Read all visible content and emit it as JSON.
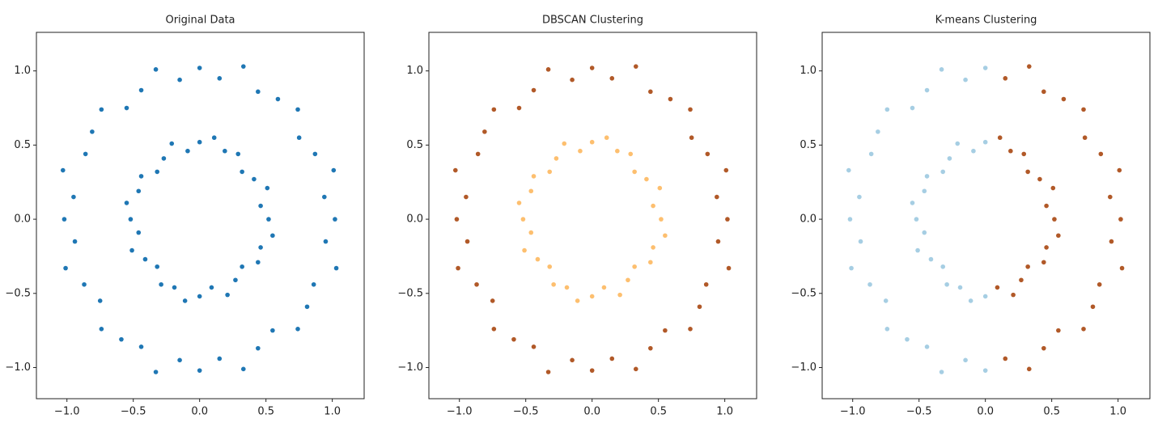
{
  "chart_data": [
    {
      "type": "scatter",
      "title": "Original Data",
      "xlim": [
        -1.23,
        1.24
      ],
      "ylim": [
        -1.21,
        1.26
      ],
      "xticks": [
        {
          "value": -1.0,
          "label": "−1.0"
        },
        {
          "value": -0.5,
          "label": "−0.5"
        },
        {
          "value": 0,
          "label": "0.0"
        },
        0.5,
        {
          "value": 1.0,
          "label": "1.0"
        }
      ],
      "yticks": [
        {
          "value": -1.0,
          "label": "−1.0"
        },
        {
          "value": -0.5,
          "label": "−0.5"
        },
        {
          "value": 0,
          "label": "0.0"
        },
        0.5,
        {
          "value": 1.0,
          "label": "1.0"
        }
      ],
      "series": [
        {
          "color": "#1f77b4",
          "x": [
            1.02,
            0.94,
            1.01,
            0.87,
            0.75,
            0.74,
            0.59,
            0.44,
            0.33,
            0.15,
            0,
            -0.15,
            -0.33,
            -0.44,
            -0.55,
            -0.74,
            -0.81,
            -0.86,
            -1.03,
            -0.95,
            -1.02,
            -0.94,
            -1.01,
            -0.87,
            -0.75,
            -0.74,
            -0.59,
            -0.44,
            -0.33,
            -0.15,
            0,
            0.15,
            0.33,
            0.44,
            0.55,
            0.74,
            0.81,
            0.86,
            1.03,
            0.95,
            0.52,
            0.46,
            0.51,
            0.41,
            0.32,
            0.29,
            0.19,
            0.11,
            0,
            -0.09,
            -0.21,
            -0.27,
            -0.32,
            -0.44,
            -0.46,
            -0.55,
            -0.52,
            -0.46,
            -0.51,
            -0.41,
            -0.32,
            -0.29,
            -0.19,
            -0.11,
            0,
            0.09,
            0.21,
            0.27,
            0.32,
            0.44,
            0.46,
            0.55
          ],
          "y": [
            0,
            0.15,
            0.33,
            0.44,
            0.55,
            0.74,
            0.81,
            0.86,
            1.03,
            0.95,
            1.02,
            0.94,
            1.01,
            0.87,
            0.75,
            0.74,
            0.59,
            0.44,
            0.33,
            0.15,
            0,
            -0.15,
            -0.33,
            -0.44,
            -0.55,
            -0.74,
            -0.81,
            -0.86,
            -1.03,
            -0.95,
            -1.02,
            -0.94,
            -1.01,
            -0.87,
            -0.75,
            -0.74,
            -0.59,
            -0.44,
            -0.33,
            -0.15,
            0,
            0.09,
            0.21,
            0.27,
            0.32,
            0.44,
            0.46,
            0.55,
            0.52,
            0.46,
            0.51,
            0.41,
            0.32,
            0.29,
            0.19,
            0.11,
            0,
            -0.09,
            -0.21,
            -0.27,
            -0.32,
            -0.44,
            -0.46,
            -0.55,
            -0.52,
            -0.46,
            -0.51,
            -0.41,
            -0.32,
            -0.29,
            -0.19,
            -0.11
          ]
        }
      ]
    },
    {
      "type": "scatter",
      "title": "DBSCAN Clustering",
      "xlim": [
        -1.23,
        1.24
      ],
      "ylim": [
        -1.21,
        1.26
      ],
      "xticks": [
        {
          "value": -1.0,
          "label": "−1.0"
        },
        {
          "value": -0.5,
          "label": "−0.5"
        },
        {
          "value": 0,
          "label": "0.0"
        },
        0.5,
        {
          "value": 1.0,
          "label": "1.0"
        }
      ],
      "yticks": [
        {
          "value": -1.0,
          "label": "−1.0"
        },
        {
          "value": -0.5,
          "label": "−0.5"
        },
        {
          "value": 0,
          "label": "0.0"
        },
        0.5,
        {
          "value": 1.0,
          "label": "1.0"
        }
      ],
      "series": [
        {
          "color": "#b15928",
          "x": [
            1.02,
            0.94,
            1.01,
            0.87,
            0.75,
            0.74,
            0.59,
            0.44,
            0.33,
            0.15,
            0,
            -0.15,
            -0.33,
            -0.44,
            -0.55,
            -0.74,
            -0.81,
            -0.86,
            -1.03,
            -0.95,
            -1.02,
            -0.94,
            -1.01,
            -0.87,
            -0.75,
            -0.74,
            -0.59,
            -0.44,
            -0.33,
            -0.15,
            0,
            0.15,
            0.33,
            0.44,
            0.55,
            0.74,
            0.81,
            0.86,
            1.03,
            0.95
          ],
          "y": [
            0,
            0.15,
            0.33,
            0.44,
            0.55,
            0.74,
            0.81,
            0.86,
            1.03,
            0.95,
            1.02,
            0.94,
            1.01,
            0.87,
            0.75,
            0.74,
            0.59,
            0.44,
            0.33,
            0.15,
            0,
            -0.15,
            -0.33,
            -0.44,
            -0.55,
            -0.74,
            -0.81,
            -0.86,
            -1.03,
            -0.95,
            -1.02,
            -0.94,
            -1.01,
            -0.87,
            -0.75,
            -0.74,
            -0.59,
            -0.44,
            -0.33,
            -0.15
          ]
        },
        {
          "color": "#fdbf6f",
          "x": [
            0.52,
            0.46,
            0.51,
            0.41,
            0.32,
            0.29,
            0.19,
            0.11,
            0,
            -0.09,
            -0.21,
            -0.27,
            -0.32,
            -0.44,
            -0.46,
            -0.55,
            -0.52,
            -0.46,
            -0.51,
            -0.41,
            -0.32,
            -0.29,
            -0.19,
            -0.11,
            0,
            0.09,
            0.21,
            0.27,
            0.32,
            0.44,
            0.46,
            0.55
          ],
          "y": [
            0,
            0.09,
            0.21,
            0.27,
            0.32,
            0.44,
            0.46,
            0.55,
            0.52,
            0.46,
            0.51,
            0.41,
            0.32,
            0.29,
            0.19,
            0.11,
            0,
            -0.09,
            -0.21,
            -0.27,
            -0.32,
            -0.44,
            -0.46,
            -0.55,
            -0.52,
            -0.46,
            -0.51,
            -0.41,
            -0.32,
            -0.29,
            -0.19,
            -0.11
          ]
        }
      ]
    },
    {
      "type": "scatter",
      "title": "K-means Clustering",
      "xlim": [
        -1.23,
        1.24
      ],
      "ylim": [
        -1.21,
        1.26
      ],
      "xticks": [
        {
          "value": -1.0,
          "label": "−1.0"
        },
        {
          "value": -0.5,
          "label": "−0.5"
        },
        {
          "value": 0,
          "label": "0.0"
        },
        0.5,
        {
          "value": 1.0,
          "label": "1.0"
        }
      ],
      "yticks": [
        {
          "value": -1.0,
          "label": "−1.0"
        },
        {
          "value": -0.5,
          "label": "−0.5"
        },
        {
          "value": 0,
          "label": "0.0"
        },
        0.5,
        {
          "value": 1.0,
          "label": "1.0"
        }
      ],
      "series": [
        {
          "color": "#a6cee3",
          "x": [
            0,
            -0.15,
            -0.33,
            -0.44,
            -0.55,
            -0.74,
            -0.81,
            -0.86,
            -1.03,
            -0.95,
            -1.02,
            -0.94,
            -1.01,
            -0.87,
            -0.75,
            -0.74,
            -0.59,
            -0.44,
            -0.33,
            -0.15,
            0,
            0,
            -0.09,
            -0.21,
            -0.27,
            -0.32,
            -0.44,
            -0.46,
            -0.55,
            -0.52,
            -0.46,
            -0.51,
            -0.41,
            -0.32,
            -0.29,
            -0.19,
            -0.11,
            0
          ],
          "y": [
            1.02,
            0.94,
            1.01,
            0.87,
            0.75,
            0.74,
            0.59,
            0.44,
            0.33,
            0.15,
            0,
            -0.15,
            -0.33,
            -0.44,
            -0.55,
            -0.74,
            -0.81,
            -0.86,
            -1.03,
            -0.95,
            -1.02,
            0.52,
            0.46,
            0.51,
            0.41,
            0.32,
            0.29,
            0.19,
            0.11,
            0,
            -0.09,
            -0.21,
            -0.27,
            -0.32,
            -0.44,
            -0.46,
            -0.55,
            -0.52
          ]
        },
        {
          "color": "#b15928",
          "x": [
            0.15,
            0.33,
            0.44,
            0.55,
            0.74,
            0.81,
            0.86,
            1.03,
            0.95,
            1.02,
            0.94,
            1.01,
            0.87,
            0.75,
            0.74,
            0.59,
            0.44,
            0.33,
            0.15,
            0.09,
            0.21,
            0.27,
            0.32,
            0.44,
            0.46,
            0.55,
            0.52,
            0.46,
            0.51,
            0.41,
            0.32,
            0.29,
            0.19,
            0.11
          ],
          "y": [
            -0.94,
            -1.01,
            -0.87,
            -0.75,
            -0.74,
            -0.59,
            -0.44,
            -0.33,
            -0.15,
            0,
            0.15,
            0.33,
            0.44,
            0.55,
            0.74,
            0.81,
            0.86,
            1.03,
            0.95,
            -0.46,
            -0.51,
            -0.41,
            -0.32,
            -0.29,
            -0.19,
            -0.11,
            0,
            0.09,
            0.21,
            0.27,
            0.32,
            0.44,
            0.46,
            0.55
          ]
        }
      ]
    }
  ]
}
